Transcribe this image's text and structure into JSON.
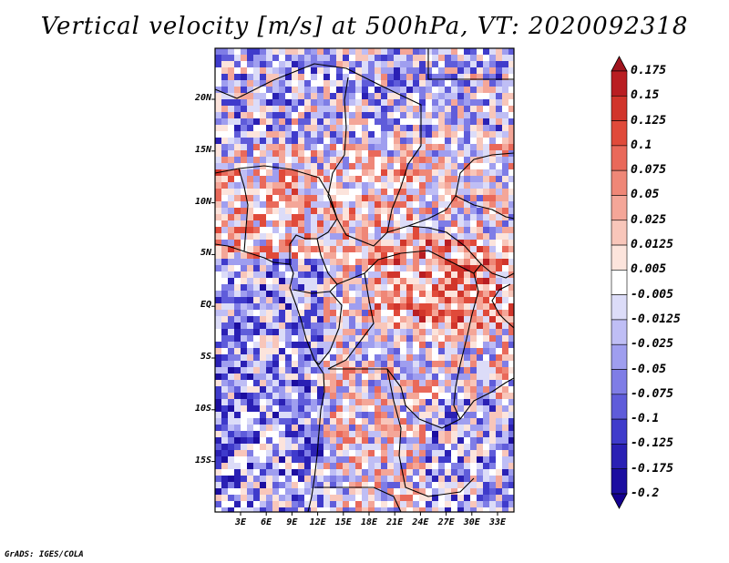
{
  "title": "Vertical velocity [m/s] at 500hPa, VT: 2020092318",
  "footer": "GrADS: IGES/COLA",
  "map": {
    "lat_ticks": [
      "20N",
      "15N",
      "10N",
      "5N",
      "EQ",
      "5S",
      "10S",
      "15S"
    ],
    "lon_ticks": [
      "3E",
      "6E",
      "9E",
      "12E",
      "15E",
      "18E",
      "21E",
      "24E",
      "27E",
      "30E",
      "33E"
    ]
  },
  "colorbar": {
    "levels": [
      "0.175",
      "0.15",
      "0.125",
      "0.1",
      "0.075",
      "0.05",
      "0.025",
      "0.0125",
      "0.005",
      "-0.005",
      "-0.0125",
      "-0.025",
      "-0.05",
      "-0.075",
      "-0.1",
      "-0.125",
      "-0.175",
      "-0.2"
    ],
    "colors": [
      "#a0141e",
      "#b91e22",
      "#d1352b",
      "#e04a3a",
      "#e9695a",
      "#ef8777",
      "#f4a698",
      "#f8c6ba",
      "#fce4dc",
      "#ffffff",
      "#dcdcf8",
      "#bfbef5",
      "#9f9eef",
      "#7f7de6",
      "#5f5cda",
      "#3f3bcb",
      "#2a20b4",
      "#1c0ea0",
      "#140090"
    ]
  }
}
